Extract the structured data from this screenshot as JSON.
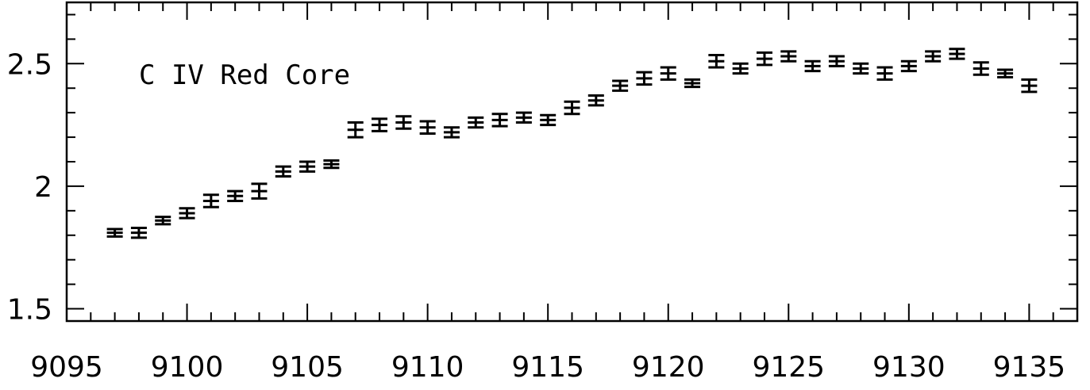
{
  "chart_data": {
    "type": "scatter",
    "title": "",
    "xlabel": "",
    "ylabel": "",
    "annotation": "C IV Red Core",
    "xlim": [
      9095,
      9137
    ],
    "ylim": [
      1.45,
      2.75
    ],
    "x_ticks": [
      9095,
      9100,
      9105,
      9110,
      9115,
      9120,
      9125,
      9130,
      9135
    ],
    "x_tick_labels": [
      "9095",
      "9100",
      "9105",
      "9110",
      "9115",
      "9120",
      "9125",
      "9130",
      "9135"
    ],
    "y_ticks": [
      1.5,
      2,
      2.5
    ],
    "y_tick_labels": [
      "1.5",
      "2",
      "2.5"
    ],
    "grid": false,
    "series": [
      {
        "x": [
          9097,
          9098,
          9099,
          9100,
          9101,
          9102,
          9103,
          9104,
          9105,
          9106,
          9107,
          9108,
          9109,
          9110,
          9111,
          9112,
          9113,
          9114,
          9115,
          9116,
          9117,
          9118,
          9119,
          9120,
          9121,
          9122,
          9123,
          9124,
          9125,
          9126,
          9127,
          9128,
          9129,
          9130,
          9131,
          9132,
          9133,
          9134,
          9135
        ],
        "y": [
          1.81,
          1.81,
          1.86,
          1.89,
          1.94,
          1.96,
          1.98,
          2.06,
          2.08,
          2.09,
          2.23,
          2.25,
          2.26,
          2.24,
          2.22,
          2.26,
          2.27,
          2.28,
          2.27,
          2.32,
          2.35,
          2.41,
          2.44,
          2.46,
          2.42,
          2.51,
          2.48,
          2.52,
          2.53,
          2.49,
          2.51,
          2.48,
          2.46,
          2.49,
          2.53,
          2.54,
          2.48,
          2.46,
          2.41
        ],
        "error": [
          0.015,
          0.02,
          0.015,
          0.02,
          0.025,
          0.02,
          0.03,
          0.02,
          0.02,
          0.015,
          0.03,
          0.025,
          0.025,
          0.025,
          0.02,
          0.02,
          0.025,
          0.02,
          0.02,
          0.025,
          0.02,
          0.02,
          0.025,
          0.025,
          0.015,
          0.025,
          0.02,
          0.025,
          0.02,
          0.02,
          0.02,
          0.02,
          0.025,
          0.02,
          0.02,
          0.02,
          0.025,
          0.015,
          0.025
        ]
      }
    ]
  }
}
